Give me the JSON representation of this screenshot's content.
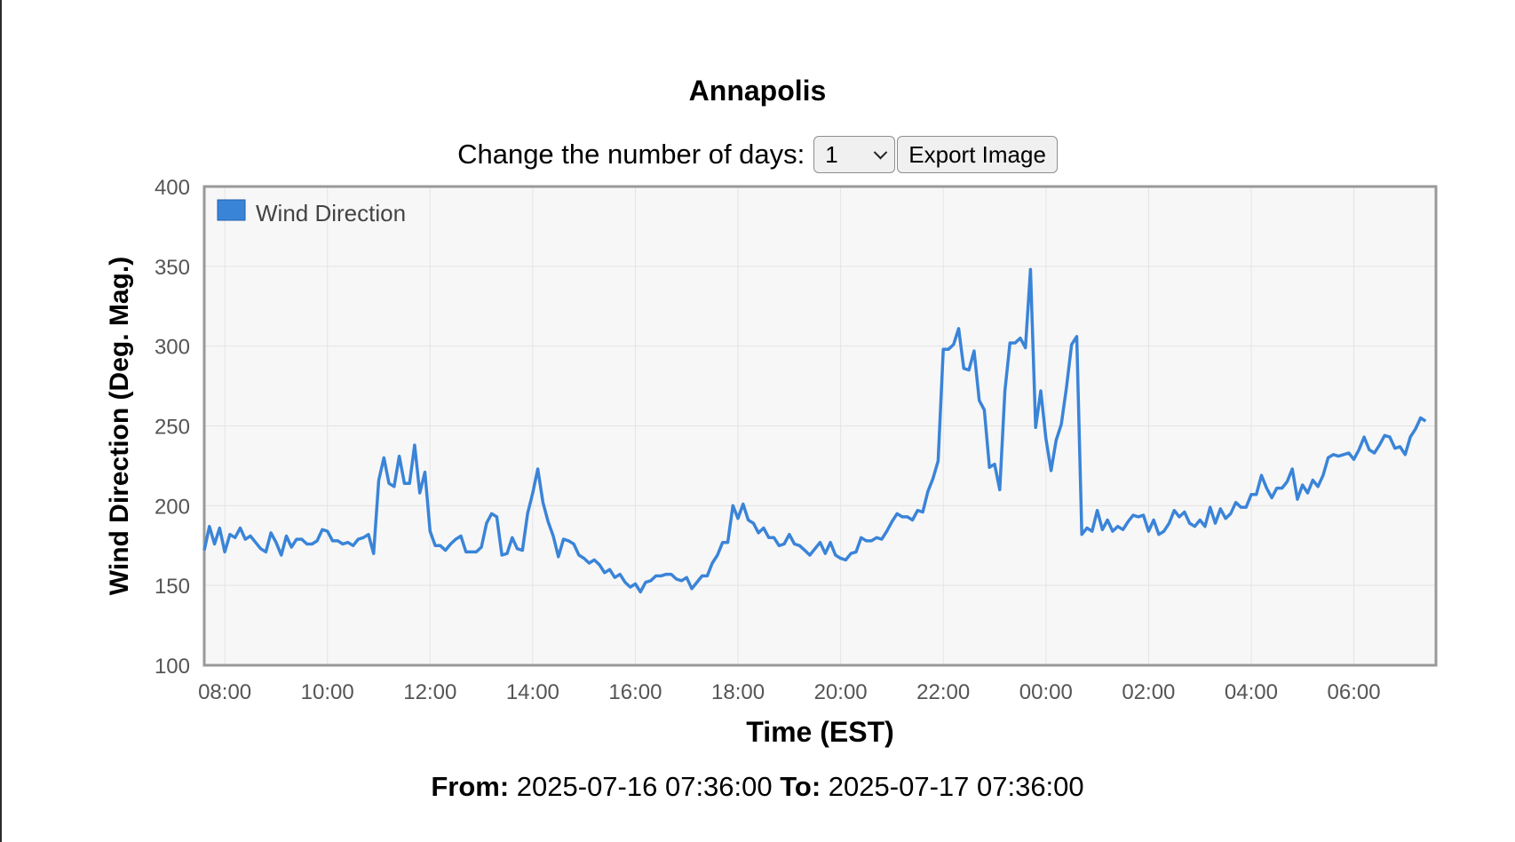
{
  "page": {
    "title": "Annapolis",
    "controls": {
      "days_label": "Change the number of days:",
      "days_value": "1",
      "export_label": "Export Image"
    },
    "footer": {
      "from_label": "From:",
      "from_value": "2025-07-16 07:36:00",
      "to_label": "To:",
      "to_value": "2025-07-17 07:36:00"
    }
  },
  "colors": {
    "series": "#3a84d8",
    "plot_bg": "#f7f7f7",
    "grid": "#e4e4e4",
    "border": "#999999"
  },
  "chart_data": {
    "type": "line",
    "xlabel": "Time (EST)",
    "ylabel": "Wind Direction (Deg. Mag.)",
    "ylim": [
      100,
      400
    ],
    "yticks": [
      100,
      150,
      200,
      250,
      300,
      350,
      400
    ],
    "xlim_hours": [
      7.6,
      31.6
    ],
    "xticks": [
      {
        "h": 8,
        "label": "08:00"
      },
      {
        "h": 10,
        "label": "10:00"
      },
      {
        "h": 12,
        "label": "12:00"
      },
      {
        "h": 14,
        "label": "14:00"
      },
      {
        "h": 16,
        "label": "16:00"
      },
      {
        "h": 18,
        "label": "18:00"
      },
      {
        "h": 20,
        "label": "20:00"
      },
      {
        "h": 22,
        "label": "22:00"
      },
      {
        "h": 24,
        "label": "00:00"
      },
      {
        "h": 26,
        "label": "02:00"
      },
      {
        "h": 28,
        "label": "04:00"
      },
      {
        "h": 30,
        "label": "06:00"
      }
    ],
    "legend": {
      "position": "top-left",
      "entries": [
        "Wind Direction"
      ]
    },
    "grid": true,
    "series": [
      {
        "name": "Wind Direction",
        "points": [
          [
            7.6,
            172
          ],
          [
            7.7,
            187
          ],
          [
            7.8,
            176
          ],
          [
            7.9,
            186
          ],
          [
            8.0,
            171
          ],
          [
            8.1,
            182
          ],
          [
            8.2,
            180
          ],
          [
            8.3,
            186
          ],
          [
            8.4,
            179
          ],
          [
            8.5,
            181
          ],
          [
            8.6,
            177
          ],
          [
            8.7,
            173
          ],
          [
            8.8,
            171
          ],
          [
            8.9,
            183
          ],
          [
            9.0,
            177
          ],
          [
            9.1,
            169
          ],
          [
            9.2,
            181
          ],
          [
            9.3,
            174
          ],
          [
            9.4,
            179
          ],
          [
            9.5,
            179
          ],
          [
            9.6,
            176
          ],
          [
            9.7,
            176
          ],
          [
            9.8,
            178
          ],
          [
            9.9,
            185
          ],
          [
            10.0,
            184
          ],
          [
            10.1,
            178
          ],
          [
            10.2,
            178
          ],
          [
            10.3,
            176
          ],
          [
            10.4,
            177
          ],
          [
            10.5,
            175
          ],
          [
            10.6,
            179
          ],
          [
            10.7,
            180
          ],
          [
            10.8,
            182
          ],
          [
            10.9,
            170
          ],
          [
            11.0,
            216
          ],
          [
            11.1,
            230
          ],
          [
            11.2,
            214
          ],
          [
            11.3,
            212
          ],
          [
            11.4,
            231
          ],
          [
            11.5,
            214
          ],
          [
            11.6,
            214
          ],
          [
            11.7,
            238
          ],
          [
            11.8,
            208
          ],
          [
            11.9,
            221
          ],
          [
            12.0,
            184
          ],
          [
            12.1,
            175
          ],
          [
            12.2,
            175
          ],
          [
            12.3,
            172
          ],
          [
            12.4,
            176
          ],
          [
            12.5,
            179
          ],
          [
            12.6,
            181
          ],
          [
            12.7,
            171
          ],
          [
            12.8,
            171
          ],
          [
            12.9,
            171
          ],
          [
            13.0,
            174
          ],
          [
            13.1,
            189
          ],
          [
            13.2,
            195
          ],
          [
            13.3,
            193
          ],
          [
            13.4,
            169
          ],
          [
            13.5,
            170
          ],
          [
            13.6,
            180
          ],
          [
            13.7,
            173
          ],
          [
            13.8,
            172
          ],
          [
            13.9,
            195
          ],
          [
            14.0,
            208
          ],
          [
            14.1,
            223
          ],
          [
            14.2,
            202
          ],
          [
            14.3,
            190
          ],
          [
            14.4,
            181
          ],
          [
            14.5,
            168
          ],
          [
            14.6,
            179
          ],
          [
            14.7,
            178
          ],
          [
            14.8,
            176
          ],
          [
            14.9,
            169
          ],
          [
            15.0,
            167
          ],
          [
            15.1,
            164
          ],
          [
            15.2,
            166
          ],
          [
            15.3,
            163
          ],
          [
            15.4,
            158
          ],
          [
            15.5,
            160
          ],
          [
            15.6,
            155
          ],
          [
            15.7,
            157
          ],
          [
            15.8,
            152
          ],
          [
            15.9,
            149
          ],
          [
            16.0,
            151
          ],
          [
            16.1,
            146
          ],
          [
            16.2,
            152
          ],
          [
            16.3,
            153
          ],
          [
            16.4,
            156
          ],
          [
            16.5,
            156
          ],
          [
            16.6,
            157
          ],
          [
            16.7,
            157
          ],
          [
            16.8,
            154
          ],
          [
            16.9,
            153
          ],
          [
            17.0,
            155
          ],
          [
            17.1,
            148
          ],
          [
            17.2,
            152
          ],
          [
            17.3,
            156
          ],
          [
            17.4,
            156
          ],
          [
            17.5,
            164
          ],
          [
            17.6,
            169
          ],
          [
            17.7,
            177
          ],
          [
            17.8,
            177
          ],
          [
            17.9,
            200
          ],
          [
            18.0,
            192
          ],
          [
            18.1,
            201
          ],
          [
            18.2,
            191
          ],
          [
            18.3,
            189
          ],
          [
            18.4,
            183
          ],
          [
            18.5,
            186
          ],
          [
            18.6,
            180
          ],
          [
            18.7,
            180
          ],
          [
            18.8,
            175
          ],
          [
            18.9,
            176
          ],
          [
            19.0,
            182
          ],
          [
            19.1,
            176
          ],
          [
            19.2,
            175
          ],
          [
            19.3,
            172
          ],
          [
            19.4,
            169
          ],
          [
            19.5,
            173
          ],
          [
            19.6,
            177
          ],
          [
            19.7,
            170
          ],
          [
            19.8,
            177
          ],
          [
            19.9,
            169
          ],
          [
            20.0,
            167
          ],
          [
            20.1,
            166
          ],
          [
            20.2,
            170
          ],
          [
            20.3,
            171
          ],
          [
            20.4,
            180
          ],
          [
            20.5,
            178
          ],
          [
            20.6,
            178
          ],
          [
            20.7,
            180
          ],
          [
            20.8,
            179
          ],
          [
            20.9,
            184
          ],
          [
            21.0,
            190
          ],
          [
            21.1,
            195
          ],
          [
            21.2,
            193
          ],
          [
            21.3,
            193
          ],
          [
            21.4,
            191
          ],
          [
            21.5,
            197
          ],
          [
            21.6,
            196
          ],
          [
            21.7,
            209
          ],
          [
            21.8,
            217
          ],
          [
            21.9,
            228
          ],
          [
            22.0,
            298
          ],
          [
            22.1,
            298
          ],
          [
            22.2,
            301
          ],
          [
            22.3,
            311
          ],
          [
            22.4,
            286
          ],
          [
            22.5,
            285
          ],
          [
            22.6,
            297
          ],
          [
            22.7,
            266
          ],
          [
            22.8,
            260
          ],
          [
            22.9,
            224
          ],
          [
            23.0,
            226
          ],
          [
            23.1,
            210
          ],
          [
            23.2,
            272
          ],
          [
            23.3,
            302
          ],
          [
            23.4,
            302
          ],
          [
            23.5,
            305
          ],
          [
            23.6,
            299
          ],
          [
            23.7,
            348
          ],
          [
            23.8,
            249
          ],
          [
            23.9,
            272
          ],
          [
            24.0,
            242
          ],
          [
            24.1,
            222
          ],
          [
            24.2,
            241
          ],
          [
            24.3,
            251
          ],
          [
            24.4,
            274
          ],
          [
            24.5,
            301
          ],
          [
            24.6,
            306
          ],
          [
            24.7,
            182
          ],
          [
            24.8,
            186
          ],
          [
            24.9,
            184
          ],
          [
            25.0,
            197
          ],
          [
            25.1,
            185
          ],
          [
            25.2,
            191
          ],
          [
            25.3,
            184
          ],
          [
            25.4,
            187
          ],
          [
            25.5,
            185
          ],
          [
            25.6,
            190
          ],
          [
            25.7,
            194
          ],
          [
            25.8,
            193
          ],
          [
            25.9,
            194
          ],
          [
            26.0,
            184
          ],
          [
            26.1,
            191
          ],
          [
            26.2,
            182
          ],
          [
            26.3,
            184
          ],
          [
            26.4,
            189
          ],
          [
            26.5,
            197
          ],
          [
            26.6,
            193
          ],
          [
            26.7,
            196
          ],
          [
            26.8,
            189
          ],
          [
            26.9,
            187
          ],
          [
            27.0,
            191
          ],
          [
            27.1,
            187
          ],
          [
            27.2,
            199
          ],
          [
            27.3,
            189
          ],
          [
            27.4,
            198
          ],
          [
            27.5,
            192
          ],
          [
            27.6,
            195
          ],
          [
            27.7,
            202
          ],
          [
            27.8,
            199
          ],
          [
            27.9,
            199
          ],
          [
            28.0,
            207
          ],
          [
            28.1,
            207
          ],
          [
            28.2,
            219
          ],
          [
            28.3,
            211
          ],
          [
            28.4,
            205
          ],
          [
            28.5,
            211
          ],
          [
            28.6,
            211
          ],
          [
            28.7,
            215
          ],
          [
            28.8,
            223
          ],
          [
            28.9,
            204
          ],
          [
            29.0,
            213
          ],
          [
            29.1,
            208
          ],
          [
            29.2,
            216
          ],
          [
            29.3,
            212
          ],
          [
            29.4,
            219
          ],
          [
            29.5,
            230
          ],
          [
            29.6,
            232
          ],
          [
            29.7,
            231
          ],
          [
            29.8,
            232
          ],
          [
            29.9,
            233
          ],
          [
            30.0,
            229
          ],
          [
            30.1,
            235
          ],
          [
            30.2,
            243
          ],
          [
            30.3,
            235
          ],
          [
            30.4,
            233
          ],
          [
            30.5,
            238
          ],
          [
            30.6,
            244
          ],
          [
            30.7,
            243
          ],
          [
            30.8,
            236
          ],
          [
            30.9,
            237
          ],
          [
            31.0,
            232
          ],
          [
            31.1,
            243
          ],
          [
            31.2,
            248
          ],
          [
            31.3,
            255
          ],
          [
            31.4,
            253
          ]
        ]
      }
    ]
  }
}
